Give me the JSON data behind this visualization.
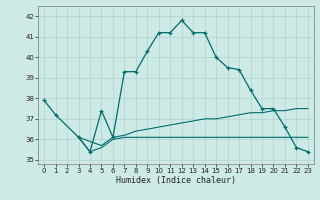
{
  "xlabel": "Humidex (Indice chaleur)",
  "ylabel": "",
  "xlim": [
    -0.5,
    23.5
  ],
  "ylim": [
    34.8,
    42.5
  ],
  "yticks": [
    35,
    36,
    37,
    38,
    39,
    40,
    41,
    42
  ],
  "xticks": [
    0,
    1,
    2,
    3,
    4,
    5,
    6,
    7,
    8,
    9,
    10,
    11,
    12,
    13,
    14,
    15,
    16,
    17,
    18,
    19,
    20,
    21,
    22,
    23
  ],
  "bg_color": "#ceeae7",
  "line_color": "#006b6b",
  "grid_color": "#aed4d0",
  "series1_x": [
    0,
    1,
    3,
    4,
    5,
    6,
    7,
    8,
    9,
    10,
    11,
    12,
    13,
    14,
    15,
    16,
    17,
    18,
    19,
    20,
    21,
    22,
    23
  ],
  "series1_y": [
    37.9,
    37.2,
    36.1,
    35.4,
    37.4,
    36.1,
    39.3,
    39.3,
    40.3,
    41.2,
    41.2,
    41.8,
    41.2,
    41.2,
    40.0,
    39.5,
    39.4,
    38.4,
    37.5,
    37.5,
    36.6,
    35.6,
    35.4
  ],
  "series2_x": [
    3,
    4,
    5,
    6,
    7,
    8,
    9,
    10,
    11,
    12,
    13,
    14,
    15,
    16,
    17,
    18,
    19,
    20,
    21,
    22,
    23
  ],
  "series2_y": [
    36.1,
    35.9,
    35.7,
    36.1,
    36.2,
    36.4,
    36.5,
    36.6,
    36.7,
    36.8,
    36.9,
    37.0,
    37.0,
    37.1,
    37.2,
    37.3,
    37.3,
    37.4,
    37.4,
    37.5,
    37.5
  ],
  "series3_x": [
    3,
    4,
    5,
    6,
    7,
    8,
    9,
    10,
    11,
    12,
    13,
    14,
    15,
    16,
    17,
    18,
    19,
    20,
    21,
    22,
    23
  ],
  "series3_y": [
    36.1,
    35.4,
    35.6,
    36.0,
    36.1,
    36.1,
    36.1,
    36.1,
    36.1,
    36.1,
    36.1,
    36.1,
    36.1,
    36.1,
    36.1,
    36.1,
    36.1,
    36.1,
    36.1,
    36.1,
    36.1
  ]
}
